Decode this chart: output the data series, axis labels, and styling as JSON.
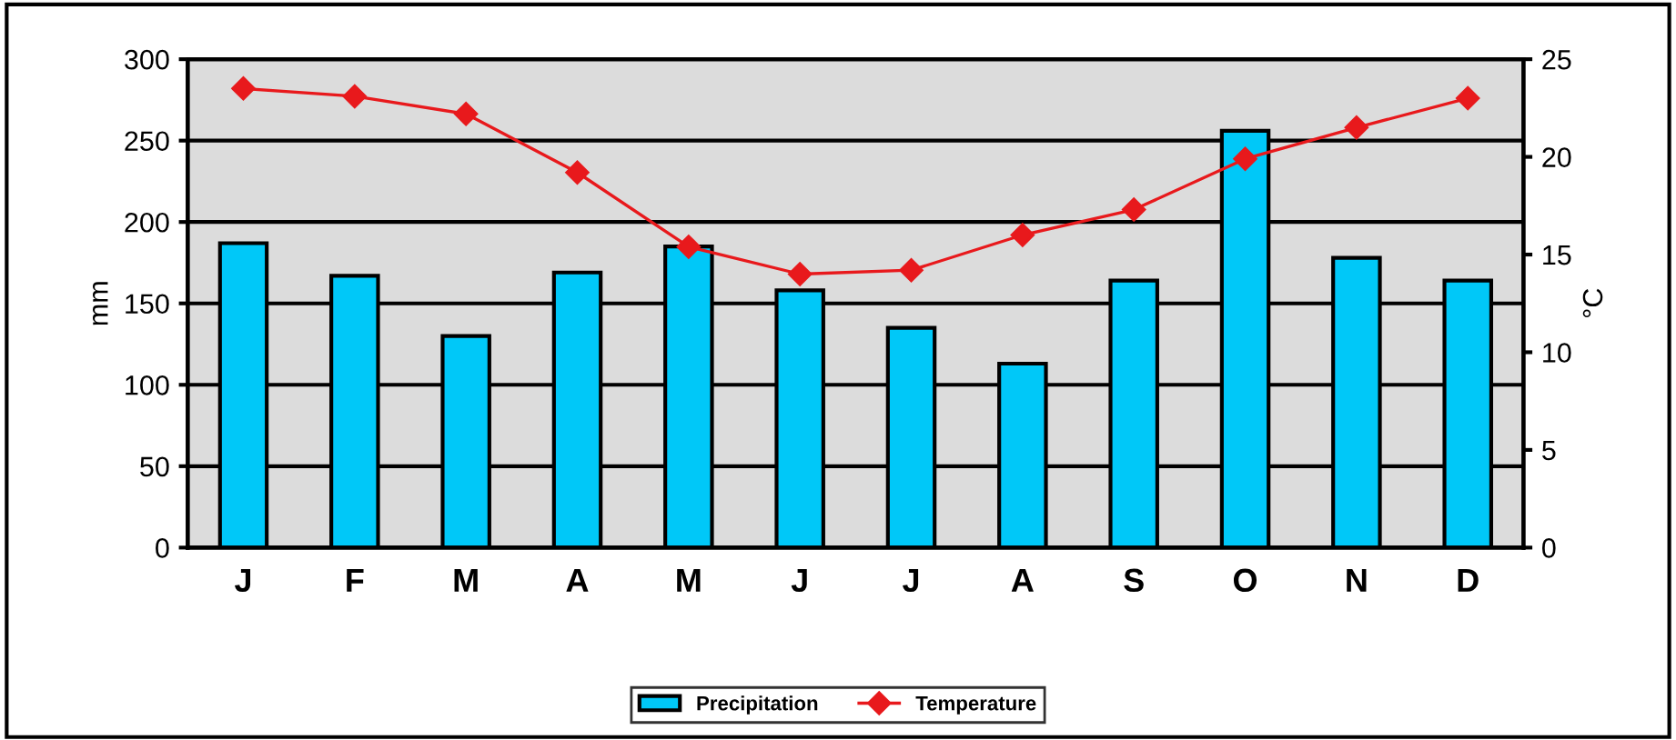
{
  "chart_data": {
    "type": "bar",
    "categories": [
      "J",
      "F",
      "M",
      "A",
      "M",
      "J",
      "J",
      "A",
      "S",
      "O",
      "N",
      "D"
    ],
    "ylabel": "mm",
    "y2label": "°C",
    "ylim": [
      0,
      300
    ],
    "yticks": [
      0,
      50,
      100,
      150,
      200,
      250,
      300
    ],
    "y2lim": [
      0,
      25
    ],
    "y2ticks": [
      0,
      5,
      10,
      15,
      20,
      25
    ],
    "grid": "y",
    "legend": "bottom",
    "series": [
      {
        "name": "Precipitation",
        "color": "#00c8f8",
        "values": [
          187,
          167,
          130,
          169,
          185,
          158,
          135,
          113,
          164,
          256,
          178,
          164
        ]
      },
      {
        "name": "Temperature",
        "type": "line",
        "axis": "y2",
        "color": "#e8191c",
        "marker": "diamond",
        "values": [
          23.5,
          23.1,
          22.2,
          19.2,
          15.4,
          14.0,
          14.2,
          16.0,
          17.3,
          19.9,
          21.5,
          23.0
        ]
      }
    ]
  }
}
